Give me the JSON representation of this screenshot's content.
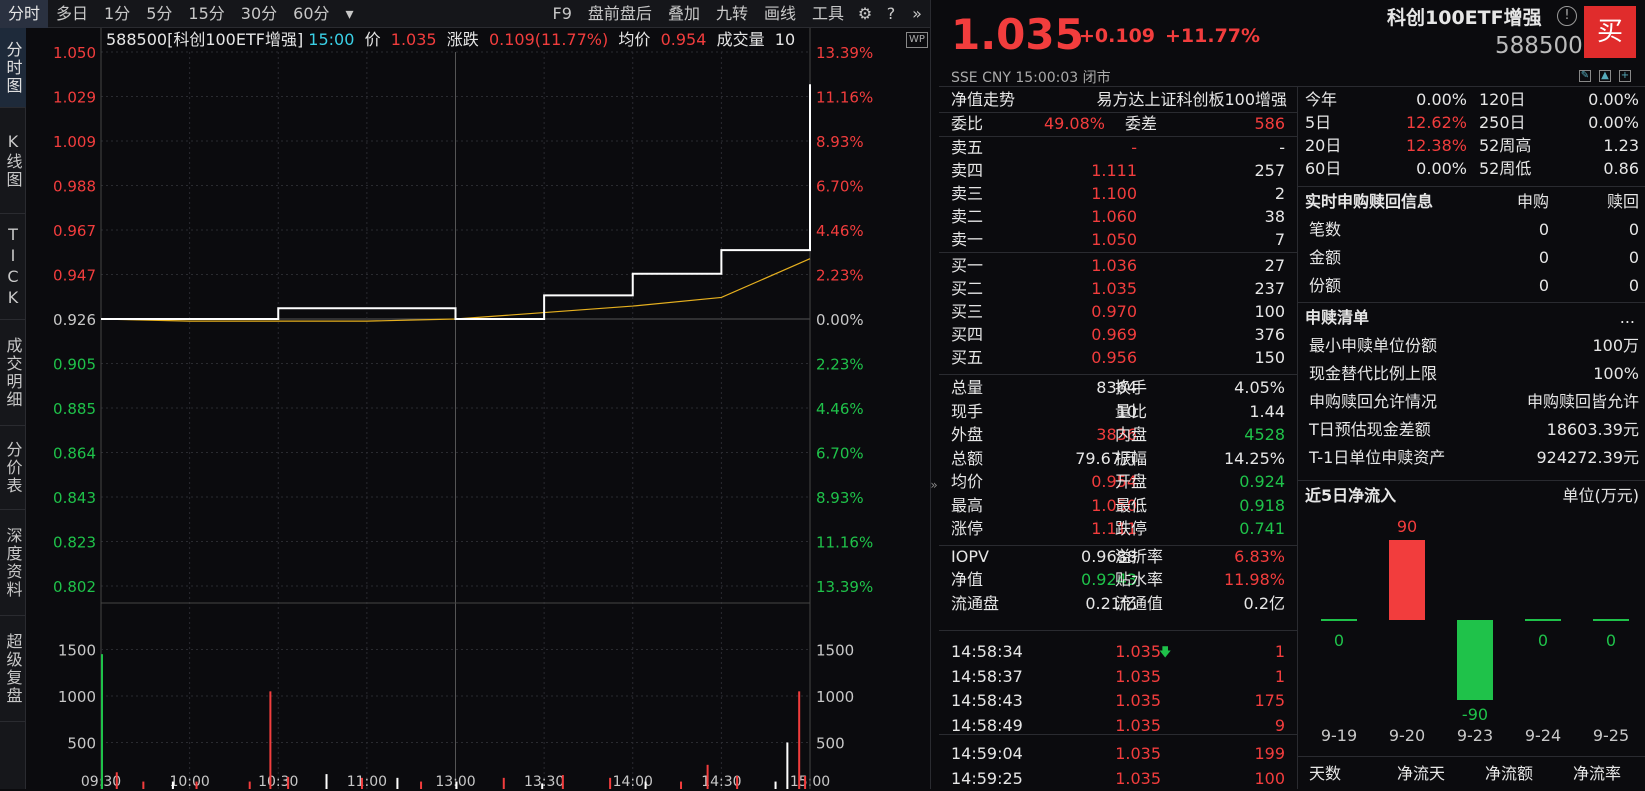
{
  "toolbar": {
    "tabs": [
      "分时",
      "多日",
      "1分",
      "5分",
      "15分",
      "30分",
      "60分",
      "▾"
    ],
    "right": [
      "F9",
      "盘前盘后",
      "叠加",
      "九转",
      "画线",
      "工具"
    ]
  },
  "vnav": [
    "分时图",
    "K线图",
    "TICK",
    "成交明细",
    "分价表",
    "深度资料",
    "超级复盘"
  ],
  "header": {
    "code_name": "588500[科创100ETF增强]",
    "time": "15:00",
    "price_label": "价",
    "price": "1.035",
    "chg_label": "涨跌",
    "chg": "0.109(11.77%)",
    "avg_label": "均价",
    "avg": "0.954",
    "vol_label": "成交量",
    "vol": "10",
    "wp": "WP"
  },
  "price_axis": [
    "1.050",
    "1.029",
    "1.009",
    "0.988",
    "0.967",
    "0.947",
    "0.926",
    "0.905",
    "0.885",
    "0.864",
    "0.843",
    "0.823",
    "0.802"
  ],
  "pct_axis": [
    "13.39%",
    "11.16%",
    "8.93%",
    "6.70%",
    "4.46%",
    "2.23%",
    "0.00%",
    "2.23%",
    "4.46%",
    "6.70%",
    "8.93%",
    "11.16%",
    "13.39%"
  ],
  "vol_axis": [
    "1500",
    "1000",
    "500"
  ],
  "time_axis": [
    "09:30",
    "10:00",
    "10:30",
    "11:00",
    "13:00",
    "13:30",
    "14:00",
    "14:30",
    "15:00"
  ],
  "quote": {
    "price": "1.035",
    "chg": "+0.109",
    "pct": "+11.77%",
    "name": "科创100ETF增强",
    "code": "588500",
    "buy": "买",
    "exch": "SSE  CNY  15:00:03  闭市",
    "nav_label": "净值走势",
    "fullname": "易方达上证科创板100增强"
  },
  "weibi": {
    "l1": "委比",
    "v1": "49.08%",
    "l2": "委差",
    "v2": "586"
  },
  "asks": [
    {
      "l": "卖五",
      "p": "-",
      "v": "-"
    },
    {
      "l": "卖四",
      "p": "1.111",
      "v": "257"
    },
    {
      "l": "卖三",
      "p": "1.100",
      "v": "2"
    },
    {
      "l": "卖二",
      "p": "1.060",
      "v": "38"
    },
    {
      "l": "卖一",
      "p": "1.050",
      "v": "7"
    }
  ],
  "bids": [
    {
      "l": "买一",
      "p": "1.036",
      "v": "27"
    },
    {
      "l": "买二",
      "p": "1.035",
      "v": "237"
    },
    {
      "l": "买三",
      "p": "0.970",
      "v": "100"
    },
    {
      "l": "买四",
      "p": "0.969",
      "v": "376"
    },
    {
      "l": "买五",
      "p": "0.956",
      "v": "150"
    }
  ],
  "stats": [
    {
      "l1": "总量",
      "v1": "8364",
      "c1": "white",
      "l2": "换手",
      "v2": "4.05%",
      "c2": "white"
    },
    {
      "l1": "现手",
      "v1": "10",
      "c1": "white",
      "l2": "量比",
      "v2": "1.44",
      "c2": "white"
    },
    {
      "l1": "外盘",
      "v1": "3836",
      "c1": "red",
      "l2": "内盘",
      "v2": "4528",
      "c2": "green"
    },
    {
      "l1": "总额",
      "v1": "79.67万",
      "c1": "white",
      "l2": "振幅",
      "v2": "14.25%",
      "c2": "white"
    },
    {
      "l1": "均价",
      "v1": "0.954",
      "c1": "red",
      "l2": "开盘",
      "v2": "0.924",
      "c2": "green"
    },
    {
      "l1": "最高",
      "v1": "1.050",
      "c1": "red",
      "l2": "最低",
      "v2": "0.918",
      "c2": "green"
    },
    {
      "l1": "涨停",
      "v1": "1.111",
      "c1": "red",
      "l2": "跌停",
      "v2": "0.741",
      "c2": "green"
    },
    {
      "l1": "IOPV",
      "v1": "0.9688",
      "c1": "white",
      "l2": "溢折率",
      "v2": "6.83%",
      "c2": "red"
    },
    {
      "l1": "净值",
      "v1": "0.9243",
      "c1": "green",
      "l2": "贴水率",
      "v2": "11.98%",
      "c2": "red"
    },
    {
      "l1": "流通盘",
      "v1": "0.21亿",
      "c1": "white",
      "l2": "流通值",
      "v2": "0.2亿",
      "c2": "white"
    }
  ],
  "ticks": [
    {
      "t": "14:58:34",
      "p": "1.035",
      "v": "1",
      "arrow": "🡇"
    },
    {
      "t": "14:58:37",
      "p": "1.035",
      "v": "1",
      "arrow": ""
    },
    {
      "t": "14:58:43",
      "p": "1.035",
      "v": "175",
      "arrow": ""
    },
    {
      "t": "14:58:49",
      "p": "1.035",
      "v": "9",
      "arrow": ""
    },
    {
      "t": "14:59:04",
      "p": "1.035",
      "v": "199",
      "arrow": ""
    },
    {
      "t": "14:59:25",
      "p": "1.035",
      "v": "100",
      "arrow": ""
    }
  ],
  "perf": [
    {
      "l1": "今年",
      "v1": "0.00%",
      "c1": "white",
      "l2": "120日",
      "v2": "0.00%",
      "c2": "white"
    },
    {
      "l1": "5日",
      "v1": "12.62%",
      "c1": "red",
      "l2": "250日",
      "v2": "0.00%",
      "c2": "white"
    },
    {
      "l1": "20日",
      "v1": "12.38%",
      "c1": "red",
      "l2": "52周高",
      "v2": "1.23",
      "c2": "white"
    },
    {
      "l1": "60日",
      "v1": "0.00%",
      "c1": "white",
      "l2": "52周低",
      "v2": "0.86",
      "c2": "white"
    }
  ],
  "sg": {
    "title": "实时申购赎回信息",
    "c1": "申购",
    "c2": "赎回",
    "rows": [
      {
        "l": "笔数",
        "a": "0",
        "b": "0"
      },
      {
        "l": "金额",
        "a": "0",
        "b": "0"
      },
      {
        "l": "份额",
        "a": "0",
        "b": "0"
      }
    ]
  },
  "qd": {
    "title": "申赎清单",
    "more": "...",
    "rows": [
      {
        "l": "最小申赎单位份额",
        "v": "100万"
      },
      {
        "l": "现金替代比例上限",
        "v": "100%"
      },
      {
        "l": "申购赎回允许情况",
        "v": "申购赎回皆允许"
      },
      {
        "l": "T日预估现金差额",
        "v": "18603.39元"
      },
      {
        "l": "T-1日单位申赎资产",
        "v": "924272.39元"
      }
    ]
  },
  "flow": {
    "title": "近5日净流入",
    "unit": "单位(万元)"
  },
  "bottom_tabs": [
    "天数",
    "净流天",
    "净流额",
    "净流率"
  ],
  "chart_data": [
    {
      "type": "line",
      "title": "",
      "x": [
        "09:30",
        "10:00",
        "10:30",
        "11:00",
        "13:00",
        "13:30",
        "14:00",
        "14:30",
        "15:00"
      ],
      "series": [
        {
          "name": "价",
          "values": [
            0.926,
            0.926,
            0.931,
            0.931,
            0.926,
            0.937,
            0.947,
            0.958,
            1.035
          ]
        },
        {
          "name": "均价",
          "values": [
            0.926,
            0.925,
            0.925,
            0.925,
            0.926,
            0.929,
            0.932,
            0.936,
            0.954
          ]
        }
      ],
      "ylim": [
        0.802,
        1.05
      ],
      "grid": true
    },
    {
      "type": "bar",
      "title": "近5日净流入",
      "categories": [
        "9-19",
        "9-20",
        "9-23",
        "9-24",
        "9-25"
      ],
      "values": [
        0,
        90,
        -90,
        0,
        0
      ],
      "ylabel": "单位(万元)"
    }
  ]
}
